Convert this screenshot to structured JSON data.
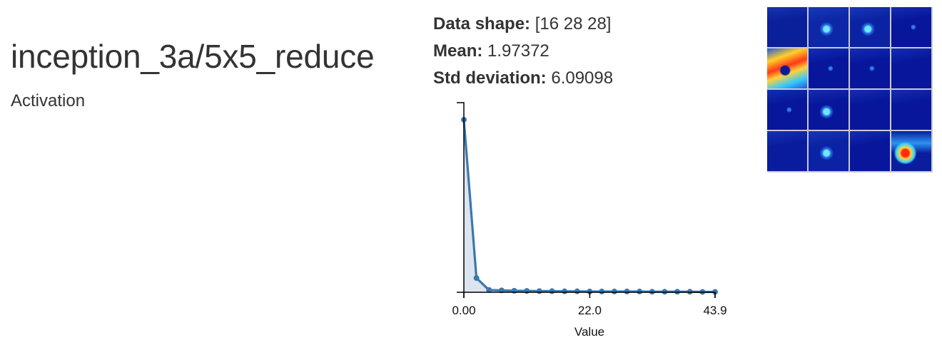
{
  "layer": {
    "name": "inception_3a/5x5_reduce",
    "type": "Activation"
  },
  "stats": {
    "shape_label": "Data shape:",
    "shape_value": "[16 28 28]",
    "mean_label": "Mean:",
    "mean_value": "1.97372",
    "std_label": "Std deviation:",
    "std_value": "6.09098"
  },
  "chart_data": {
    "type": "area",
    "xlabel": "Value",
    "xlim": [
      0,
      43.9
    ],
    "x_ticks": [
      "0.00",
      "22.0",
      "43.9"
    ],
    "x_tick_values": [
      0,
      22.0,
      43.9
    ],
    "ylim": [
      0,
      1
    ],
    "grid": false,
    "line_color": "#3a78ad",
    "fill_color": "#dce4ef",
    "series": [
      {
        "x": [
          0.0,
          2.2,
          4.4,
          6.6,
          8.8,
          11.0,
          13.2,
          15.4,
          17.6,
          19.8,
          22.0,
          24.1,
          26.3,
          28.5,
          30.7,
          32.9,
          35.1,
          37.3,
          39.5,
          41.7,
          43.9
        ],
        "y": [
          0.91,
          0.075,
          0.012,
          0.01,
          0.008,
          0.007,
          0.006,
          0.006,
          0.005,
          0.005,
          0.004,
          0.004,
          0.004,
          0.004,
          0.004,
          0.003,
          0.003,
          0.003,
          0.003,
          0.002,
          0.002
        ]
      }
    ]
  },
  "thumbnails": {
    "count": 16,
    "tiles": [
      {
        "bg": "#0a1f9a",
        "spot": "none"
      },
      {
        "bg": "#0d27a6",
        "spot": "cyan-small"
      },
      {
        "bg": "#0b23a2",
        "spot": "cyan-small"
      },
      {
        "bg": "#07169a",
        "spot": "tiny"
      },
      {
        "bg": "#1f5ad6",
        "spot": "hot"
      },
      {
        "bg": "#07169a",
        "spot": "tiny"
      },
      {
        "bg": "#07169a",
        "spot": "tiny"
      },
      {
        "bg": "#07169a",
        "spot": "none"
      },
      {
        "bg": "#07169a",
        "spot": "tiny"
      },
      {
        "bg": "#07169a",
        "spot": "cyan-small"
      },
      {
        "bg": "#07169a",
        "spot": "none"
      },
      {
        "bg": "#07169a",
        "spot": "none"
      },
      {
        "bg": "#0a1c9e",
        "spot": "none"
      },
      {
        "bg": "#0b22a4",
        "spot": "cyan-small"
      },
      {
        "bg": "#07169a",
        "spot": "none"
      },
      {
        "bg": "#1f6bd9",
        "spot": "hot-small"
      }
    ]
  }
}
